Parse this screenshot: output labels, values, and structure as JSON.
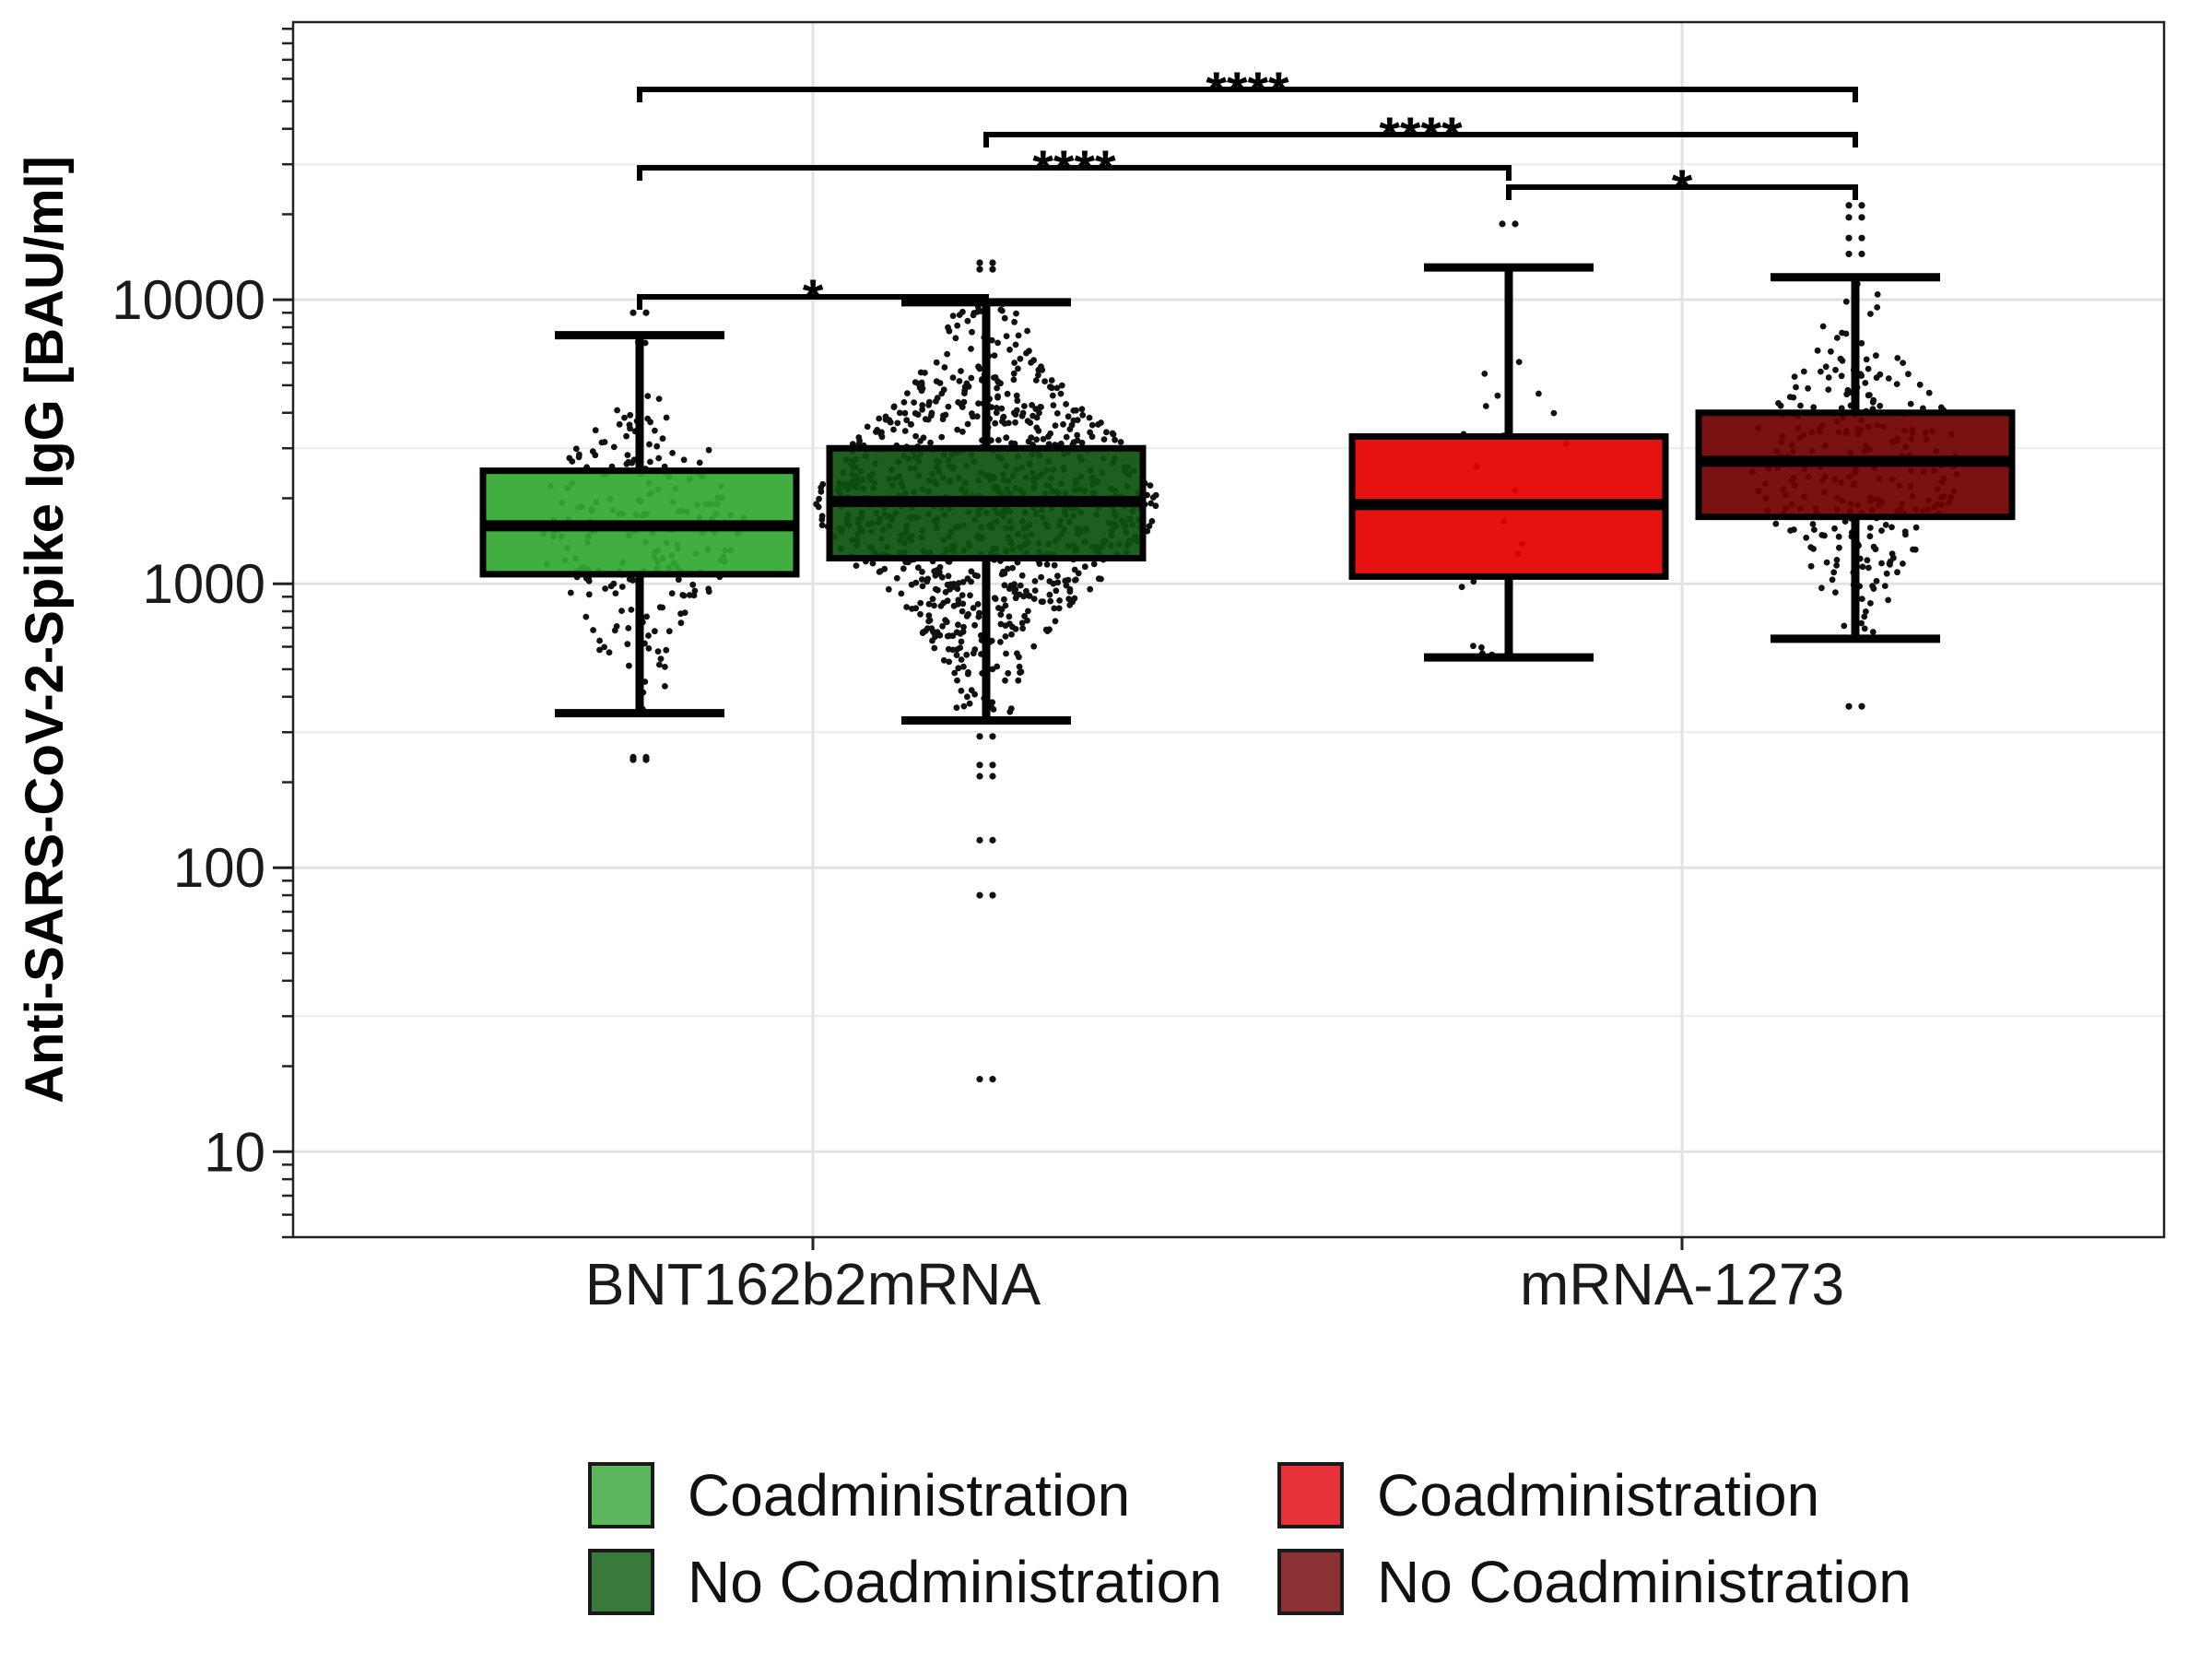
{
  "chart_data": {
    "type": "box",
    "title": "",
    "xlabel": "",
    "ylabel": "Anti-SARS-CoV-2-Spike IgG [BAU/ml]",
    "y_scale": "log10",
    "ylim": [
      5,
      95000
    ],
    "yticks": [
      10,
      100,
      1000,
      10000
    ],
    "ytick_labels": [
      "10",
      "100",
      "1000",
      "10000"
    ],
    "grid": true,
    "legend_position": "bottom",
    "categories": [
      "BNT162b2mRNA",
      "mRNA-1273"
    ],
    "series": [
      {
        "name": "Coadministration",
        "category": "BNT162b2mRNA",
        "fill": "#33a833",
        "legend_color": "#5cb85c",
        "stats": {
          "whisker_low": 350,
          "q1": 1080,
          "median": 1600,
          "q3": 2500,
          "whisker_high": 7500
        },
        "outliers": [
          240,
          245,
          9000
        ],
        "n_points": 230
      },
      {
        "name": "No Coadministration",
        "category": "BNT162b2mRNA",
        "fill": "#0d520d",
        "legend_color": "#3a7a3a",
        "stats": {
          "whisker_low": 330,
          "q1": 1230,
          "median": 1950,
          "q3": 3000,
          "whisker_high": 9800
        },
        "outliers": [
          290,
          230,
          210,
          125,
          80,
          18,
          13500,
          12800
        ],
        "n_points": 1000
      },
      {
        "name": "Coadministration",
        "category": "mRNA-1273",
        "fill": "#e40000",
        "legend_color": "#e8323a",
        "stats": {
          "whisker_low": 550,
          "q1": 1060,
          "median": 1900,
          "q3": 3300,
          "whisker_high": 13000
        },
        "outliers": [
          18500
        ],
        "n_points": 22
      },
      {
        "name": "No Coadministration",
        "category": "mRNA-1273",
        "fill": "#700000",
        "legend_color": "#8b3033",
        "stats": {
          "whisker_low": 640,
          "q1": 1720,
          "median": 2700,
          "q3": 4000,
          "whisker_high": 12000
        },
        "outliers": [
          370,
          21500,
          19500,
          16500,
          14500
        ],
        "n_points": 290
      }
    ],
    "significance": [
      {
        "from": 0,
        "to": 1,
        "label": "*"
      },
      {
        "from": 0,
        "to": 2,
        "label": "****"
      },
      {
        "from": 1,
        "to": 3,
        "label": "****"
      },
      {
        "from": 0,
        "to": 3,
        "label": "****"
      },
      {
        "from": 2,
        "to": 3,
        "label": "*"
      }
    ],
    "legend": {
      "columns": [
        {
          "entries": [
            {
              "label": "Coadministration",
              "color": "#5cb85c"
            },
            {
              "label": "No Coadministration",
              "color": "#3a7a3a"
            }
          ]
        },
        {
          "entries": [
            {
              "label": "Coadministration",
              "color": "#e8323a"
            },
            {
              "label": "No Coadministration",
              "color": "#8b3033"
            }
          ]
        }
      ]
    }
  }
}
